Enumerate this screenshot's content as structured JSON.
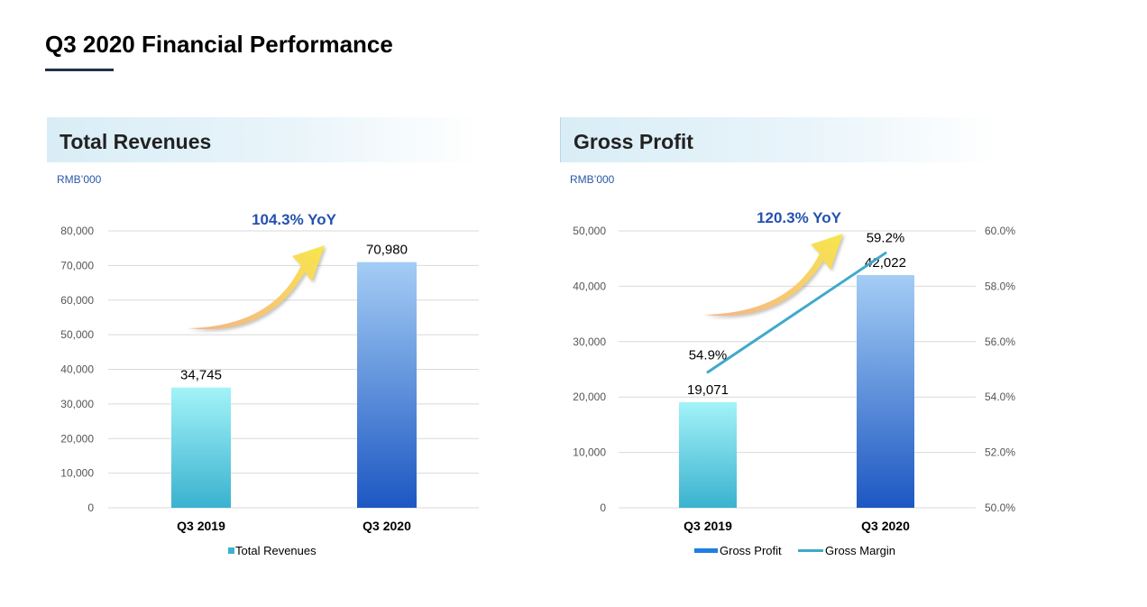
{
  "page": {
    "title": "Q3 2020 Financial Performance"
  },
  "colors": {
    "bar_light_top": "#a3f3f8",
    "bar_light_bottom": "#3ab2cf",
    "bar_dark_top": "#a4cdf5",
    "bar_dark_bottom": "#1d57c2",
    "line": "#3fa9cc",
    "yoy_text": "#2451b0",
    "unit_text": "#2a57a8",
    "grid": "#d9d9d9"
  },
  "chart_data": [
    {
      "type": "bar",
      "title": "Total Revenues",
      "unit": "RMB’000",
      "categories": [
        "Q3 2019",
        "Q3 2020"
      ],
      "series": [
        {
          "name": "Total Revenues",
          "values": [
            34745,
            70980
          ]
        }
      ],
      "data_labels": [
        "34,745",
        "70,980"
      ],
      "ylim": [
        0,
        80000
      ],
      "yticks": [
        0,
        10000,
        20000,
        30000,
        40000,
        50000,
        60000,
        70000,
        80000
      ],
      "ytick_labels": [
        "0",
        "10,000",
        "20,000",
        "30,000",
        "40,000",
        "50,000",
        "60,000",
        "70,000",
        "80,000"
      ],
      "annotation": "104.3% YoY",
      "grid": true,
      "legend_position": "bottom"
    },
    {
      "type": "bar",
      "title": "Gross Profit",
      "unit": "RMB’000",
      "categories": [
        "Q3 2019",
        "Q3 2020"
      ],
      "series": [
        {
          "name": "Gross Profit",
          "values": [
            19071,
            42022
          ]
        },
        {
          "name": "Gross Margin",
          "type": "line",
          "axis": "secondary",
          "values": [
            54.9,
            59.2
          ]
        }
      ],
      "data_labels": [
        "19,071",
        "42,022"
      ],
      "line_labels": [
        "54.9%",
        "59.2%"
      ],
      "ylim": [
        0,
        50000
      ],
      "yticks": [
        0,
        10000,
        20000,
        30000,
        40000,
        50000
      ],
      "ytick_labels": [
        "0",
        "10,000",
        "20,000",
        "30,000",
        "40,000",
        "50,000"
      ],
      "y2lim": [
        50,
        60
      ],
      "y2ticks": [
        50,
        52,
        54,
        56,
        58,
        60
      ],
      "y2tick_labels": [
        "50.0%",
        "52.0%",
        "54.0%",
        "56.0%",
        "58.0%",
        "60.0%"
      ],
      "annotation": "120.3% YoY",
      "grid": true,
      "legend_position": "bottom"
    }
  ]
}
